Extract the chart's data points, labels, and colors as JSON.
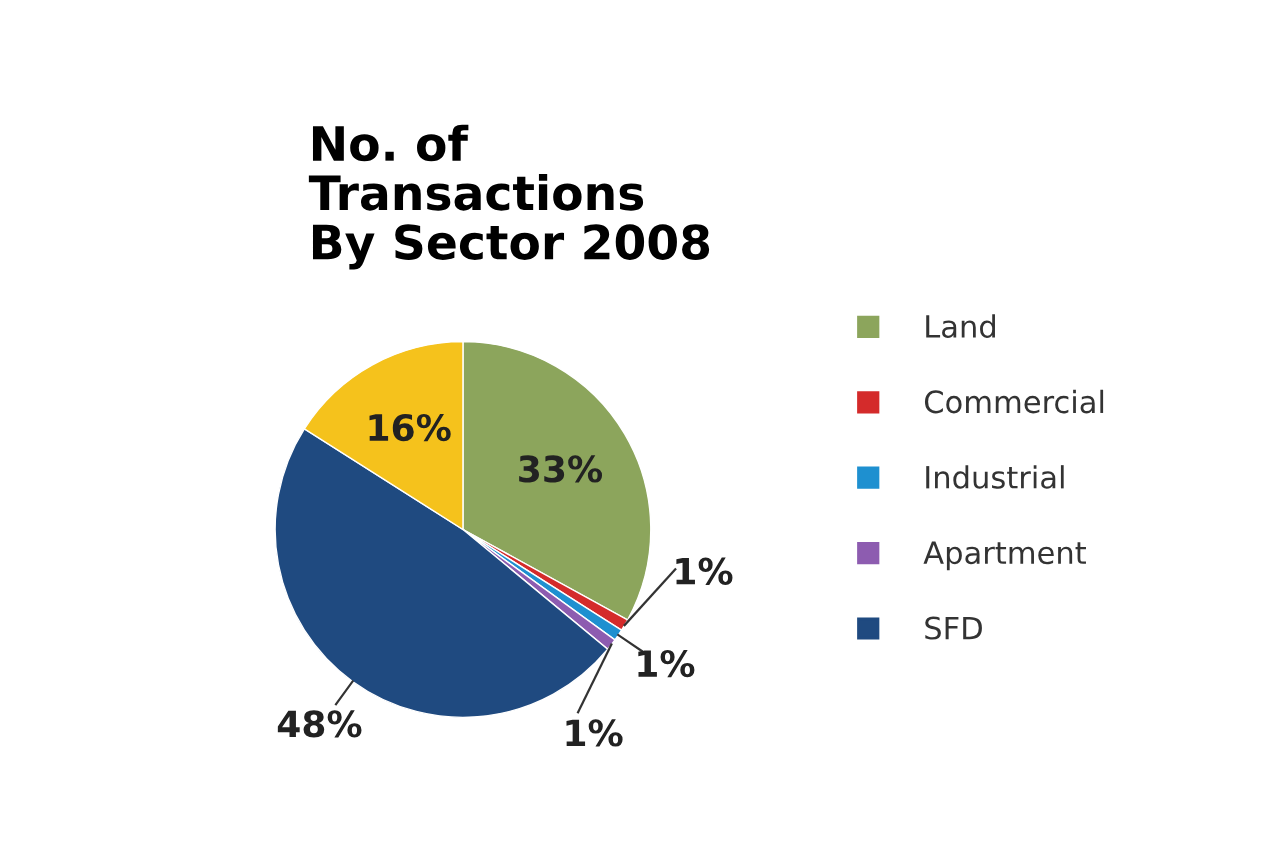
{
  "chart_data": {
    "type": "pie",
    "title": "No. of\nTransactions\nBy Sector 2008",
    "categories": [
      "Land",
      "Commercial",
      "Industrial",
      "Apartment",
      "SFD",
      null
    ],
    "values": [
      33,
      1,
      1,
      1,
      48,
      16
    ],
    "colors": [
      "#8ca55c",
      "#d42b2b",
      "#1e90d0",
      "#8d5cb0",
      "#1f4a80",
      "#f5c21c"
    ],
    "value_labels": [
      "33%",
      "1%",
      "1%",
      "1%",
      "48%",
      "16%"
    ],
    "legend": "right"
  }
}
